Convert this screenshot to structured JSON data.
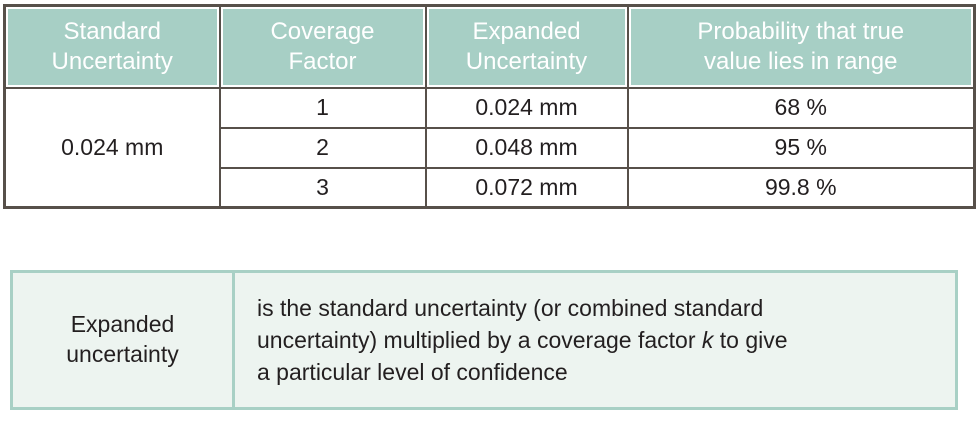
{
  "colors": {
    "header_bg": "#a7cfc5",
    "grid_border": "#57504a",
    "definition_bg": "#edf4f0",
    "definition_border": "#a8d0c5",
    "text": "#231f20",
    "header_text": "#ffffff"
  },
  "uncertainty_table": {
    "headers": [
      "Standard\nUncertainty",
      "Coverage\nFactor",
      "Expanded\nUncertainty",
      "Probability that true\nvalue lies in range"
    ],
    "standard_uncertainty": "0.024 mm",
    "rows": [
      {
        "coverage_factor": "1",
        "expanded_uncertainty": "0.024 mm",
        "probability": "68 %"
      },
      {
        "coverage_factor": "2",
        "expanded_uncertainty": "0.048 mm",
        "probability": "95 %"
      },
      {
        "coverage_factor": "3",
        "expanded_uncertainty": "0.072 mm",
        "probability": "99.8 %"
      }
    ]
  },
  "definition": {
    "term": "Expanded\nuncertainty",
    "body_pre": "is the standard uncertainty (or combined standard\nuncertainty) multiplied by a coverage factor ",
    "body_italic": "k",
    "body_post": " to give\na particular level of confidence"
  }
}
